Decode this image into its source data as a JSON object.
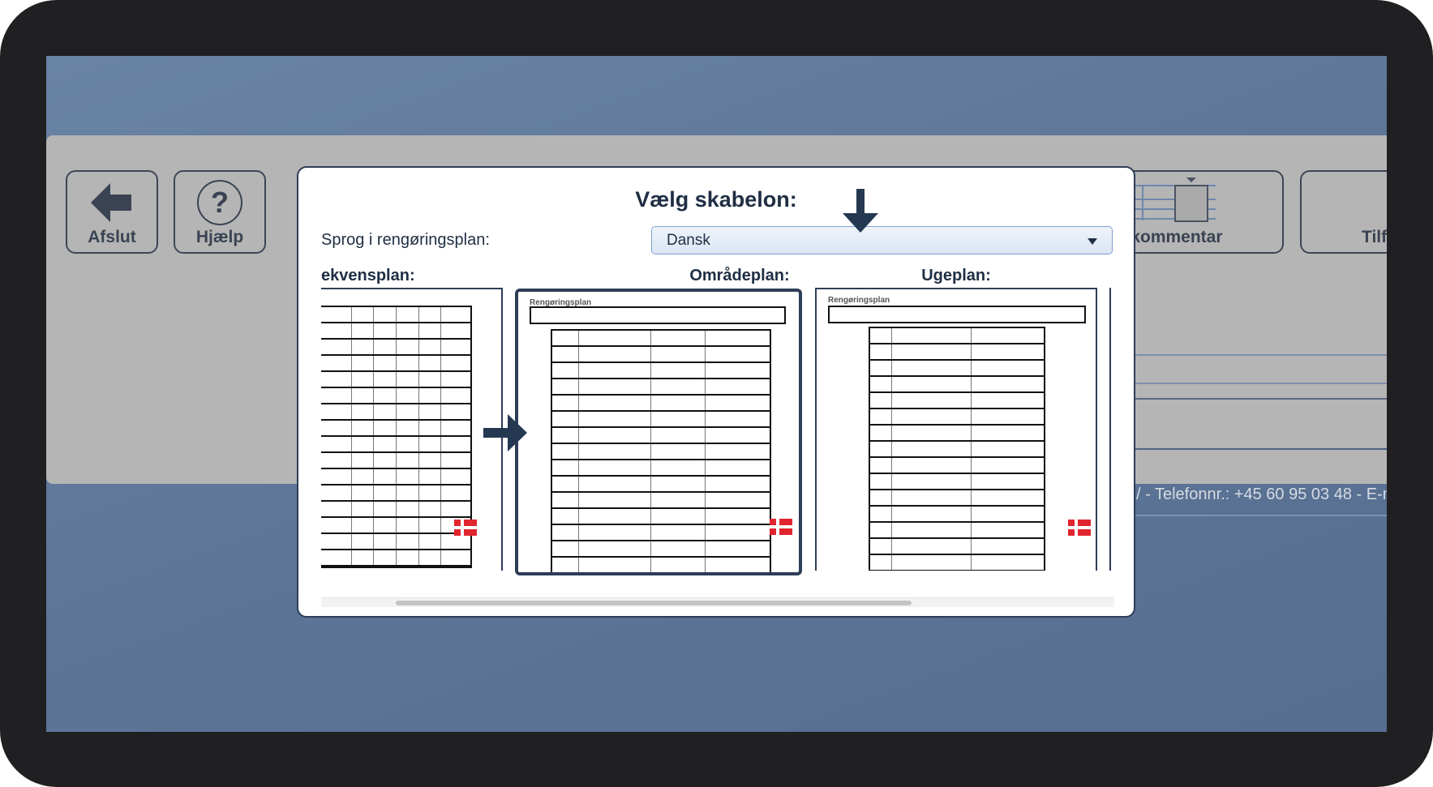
{
  "toolbar": {
    "exit_label": "Afslut",
    "help_label": "Hjælp",
    "comment_label": "lføj kommentar",
    "add_label": "Tilf"
  },
  "footer": {
    "text": "/ - Telefonnr.: +45 60 95 03 48 - E-m"
  },
  "dialog": {
    "title": "Vælg skabelon:",
    "language_label": "Sprog i rengøringsplan:",
    "language_value": "Dansk",
    "templates": [
      {
        "label": "ekvensplan:",
        "doc_title": "",
        "selected": false
      },
      {
        "label": "Områdeplan:",
        "doc_title": "Rengøringsplan",
        "selected": true
      },
      {
        "label": "Ugeplan:",
        "doc_title": "Rengøringsplan",
        "selected": false
      }
    ]
  },
  "colors": {
    "accent": "#2c3d57",
    "flag_red": "#e0252e",
    "select_border": "#7fa1d0"
  }
}
